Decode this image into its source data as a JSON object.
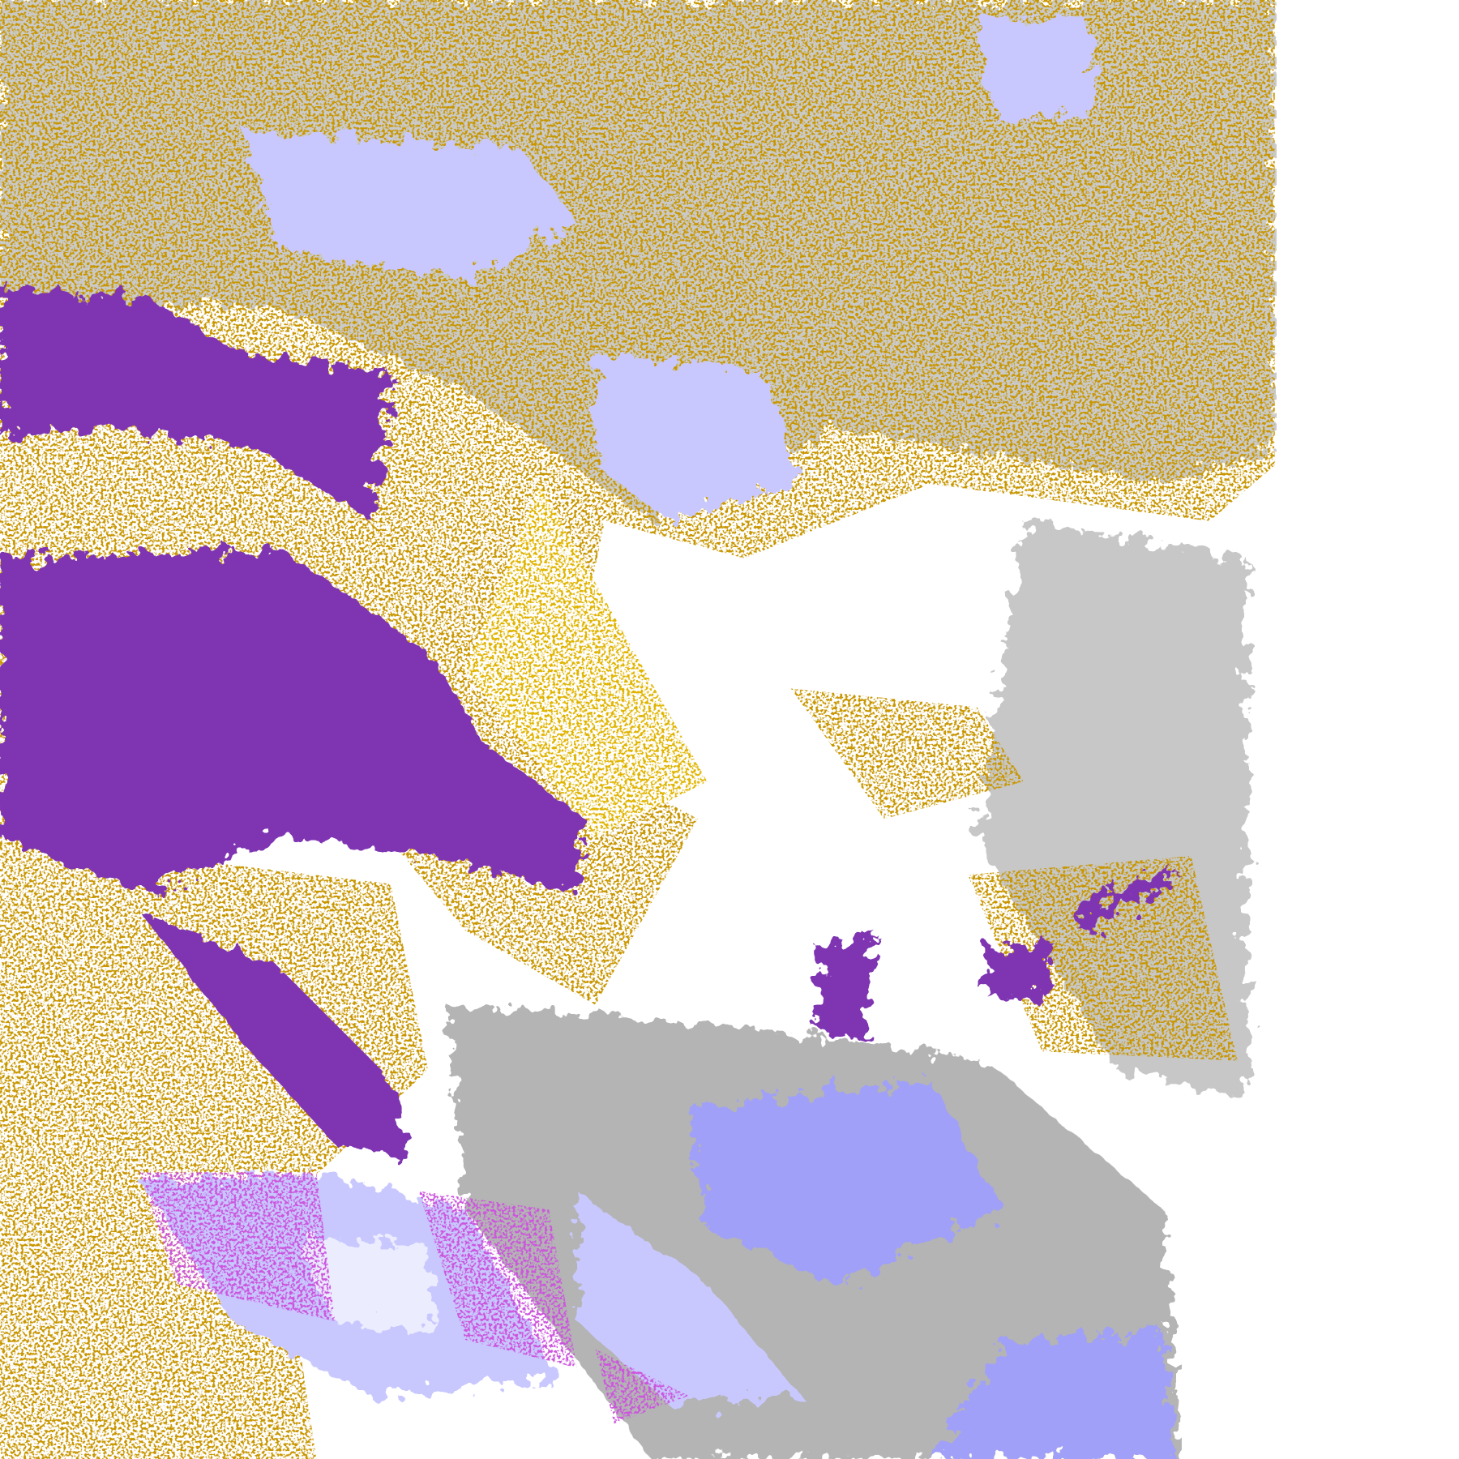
{
  "map": {
    "kind": "satellite-cloud-classification",
    "background": "#ffffff",
    "colors": {
      "gold": "#c89600",
      "gold_light": "#e0b400",
      "purple": "#7f35b2",
      "magenta": "#cc55dd",
      "lavender": "#a0a0f8",
      "lavender_light": "#c8c8ff",
      "pale": "#ececff",
      "gray": "#909090",
      "gray_light": "#b4b4b4"
    }
  }
}
